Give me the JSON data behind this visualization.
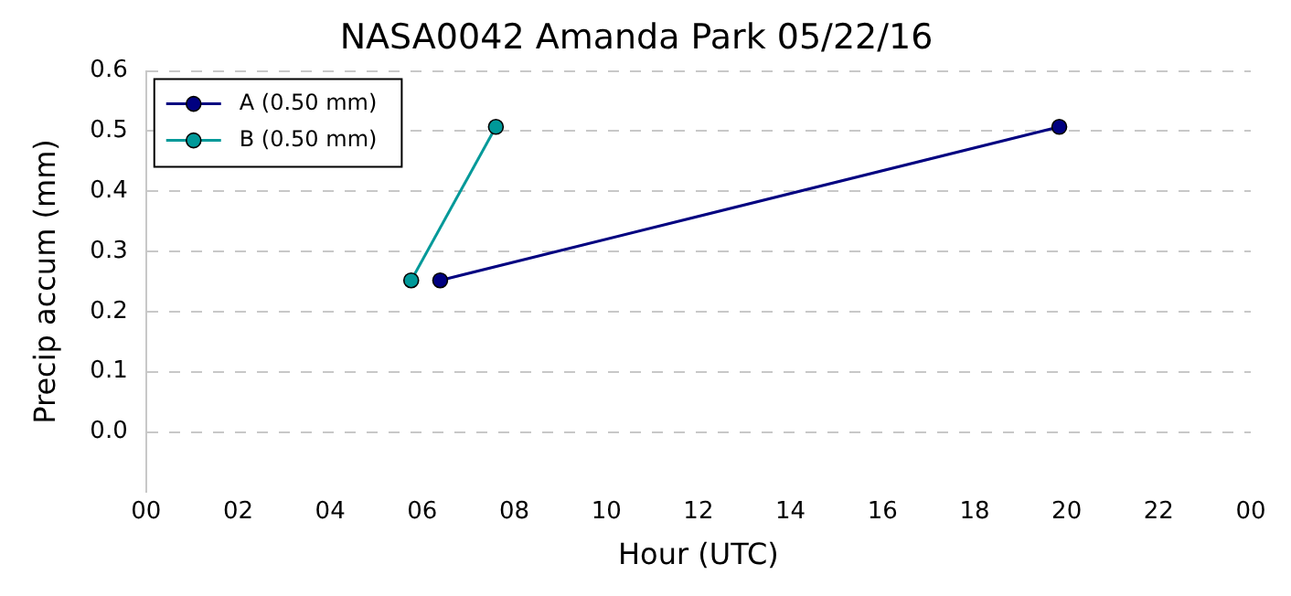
{
  "chart_data": {
    "type": "line",
    "title": "NASA0042 Amanda Park 05/22/16",
    "xlabel": "Hour (UTC)",
    "ylabel": "Precip accum (mm)",
    "series": [
      {
        "name": "A (0.50 mm)",
        "color": "#000080",
        "x": [
          6.39,
          19.84
        ],
        "values": [
          0.252,
          0.507
        ]
      },
      {
        "name": "B (0.50 mm)",
        "color": "#009999",
        "x": [
          5.76,
          7.6
        ],
        "values": [
          0.252,
          0.507
        ]
      }
    ],
    "xlim": [
      0,
      24
    ],
    "xticks": [
      {
        "value": 0,
        "label": "00"
      },
      {
        "value": 2,
        "label": "02"
      },
      {
        "value": 4,
        "label": "04"
      },
      {
        "value": 6,
        "label": "06"
      },
      {
        "value": 8,
        "label": "08"
      },
      {
        "value": 10,
        "label": "10"
      },
      {
        "value": 12,
        "label": "12"
      },
      {
        "value": 14,
        "label": "14"
      },
      {
        "value": 16,
        "label": "16"
      },
      {
        "value": 18,
        "label": "18"
      },
      {
        "value": 20,
        "label": "20"
      },
      {
        "value": 22,
        "label": "22"
      },
      {
        "value": 24,
        "label": "00"
      }
    ],
    "ylim": [
      -0.1,
      0.6
    ],
    "yticks": [
      {
        "value": 0,
        "label": "0.0"
      },
      {
        "value": 0.1,
        "label": "0.1"
      },
      {
        "value": 0.2,
        "label": "0.2"
      },
      {
        "value": 0.3,
        "label": "0.3"
      },
      {
        "value": 0.4,
        "label": "0.4"
      },
      {
        "value": 0.5,
        "label": "0.5"
      },
      {
        "value": 0.6,
        "label": "0.6"
      }
    ],
    "grid": "y",
    "legend": "top left",
    "marker": "circle",
    "line_style": "solid"
  }
}
